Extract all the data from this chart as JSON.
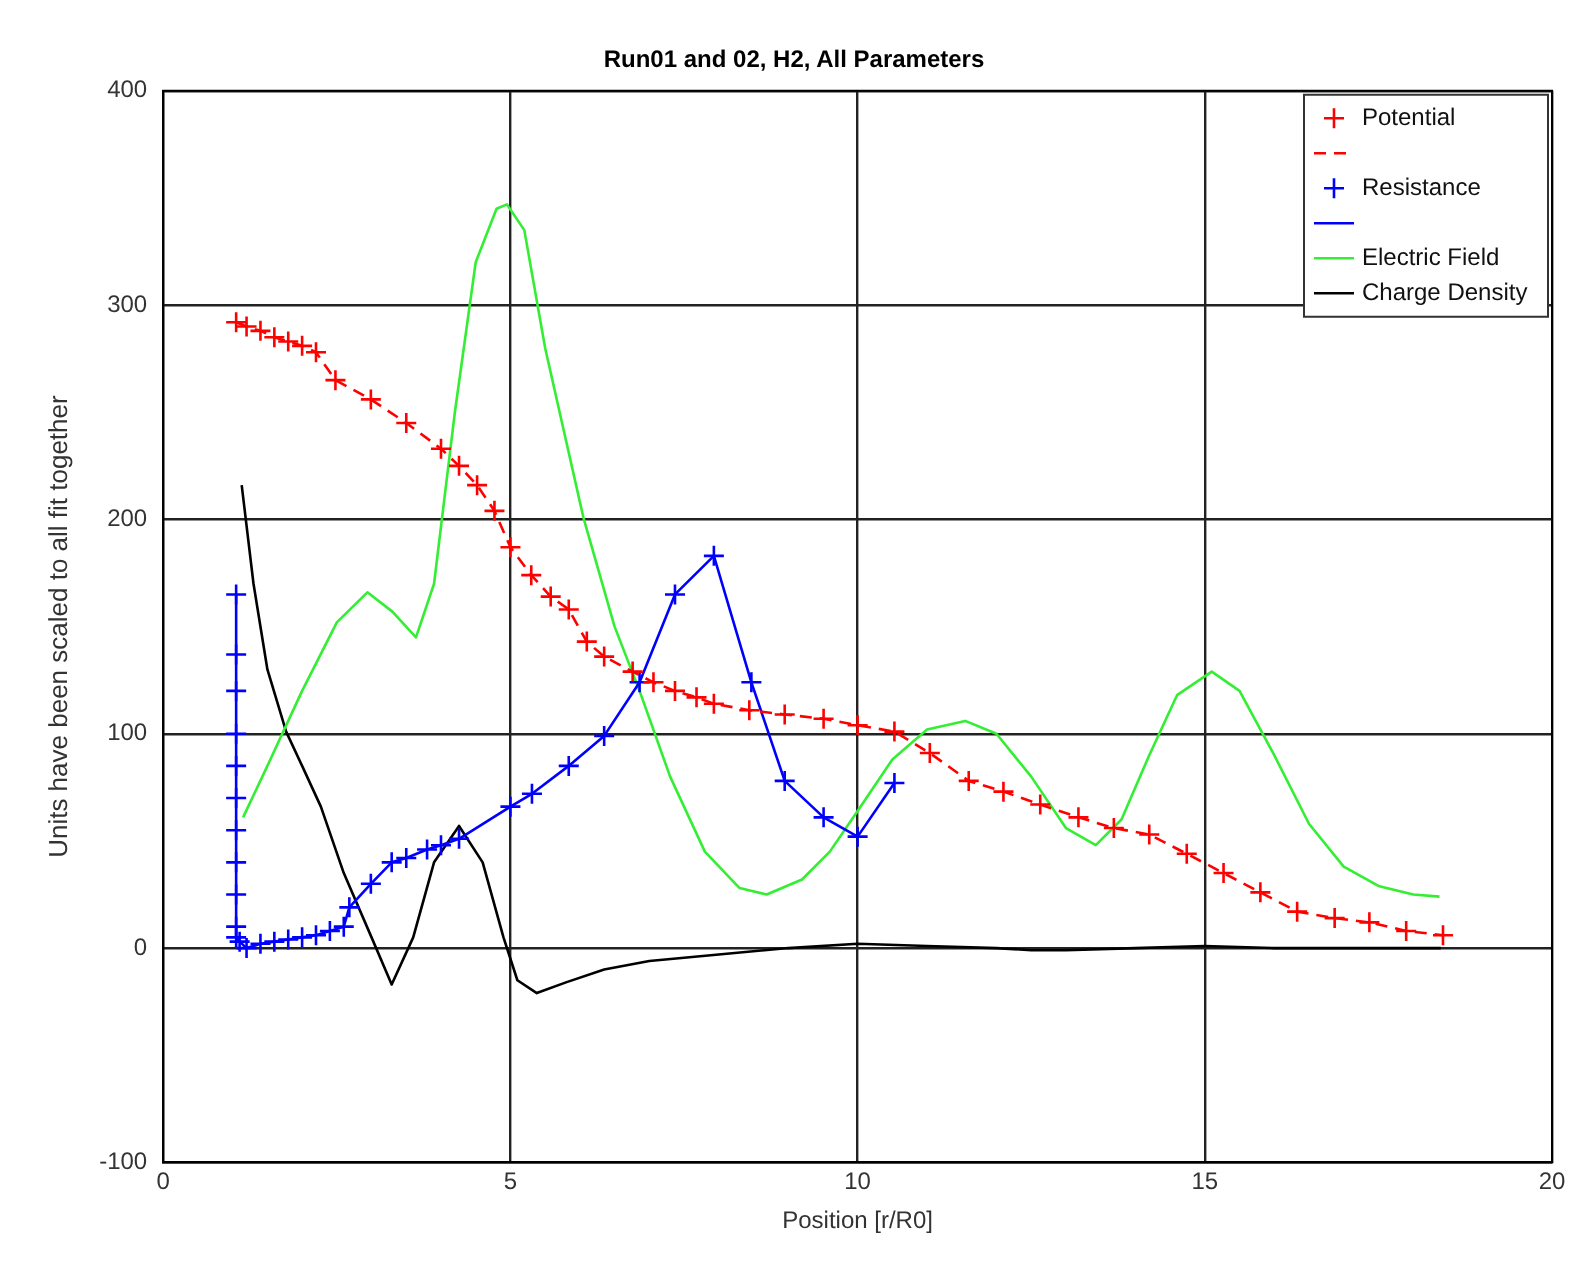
{
  "chart_data": {
    "type": "line",
    "title": "Run01 and 02, H2, All Parameters",
    "xlabel": "Position [r/R0]",
    "ylabel": "Units have been scaled to all fit together",
    "xlim": [
      0,
      20
    ],
    "xticks": [
      0,
      5,
      10,
      15,
      20
    ],
    "ylim": [
      -100,
      400
    ],
    "yticks": [
      -100,
      0,
      100,
      200,
      300,
      400
    ],
    "grid": true,
    "legend": "top right",
    "series": [
      {
        "name": "Potential",
        "color": "#ff0000",
        "marker": "cross",
        "line_style": "dashed",
        "x": [
          1.05,
          1.2,
          1.4,
          1.6,
          1.8,
          2.0,
          2.2,
          2.48,
          2.99,
          3.5,
          4.0,
          4.26,
          4.52,
          4.77,
          5.0,
          5.3,
          5.58,
          5.84,
          6.1,
          6.35,
          6.76,
          7.06,
          7.37,
          7.68,
          7.93,
          8.44,
          8.95,
          9.51,
          10.0,
          10.53,
          11.04,
          11.6,
          12.1,
          12.63,
          13.18,
          13.69,
          14.2,
          14.74,
          15.27,
          15.8,
          16.33,
          16.87,
          17.37,
          17.9,
          18.43
        ],
        "values": [
          292,
          290,
          288,
          285,
          283,
          281,
          278,
          265,
          256,
          245,
          233,
          225,
          216,
          204,
          187,
          174,
          164,
          158,
          143,
          136,
          129,
          124,
          120,
          117,
          114,
          111,
          109,
          107,
          104,
          101,
          91,
          78,
          73,
          67,
          61,
          56,
          53,
          44,
          35,
          26,
          17,
          14,
          12,
          8,
          6
        ]
      },
      {
        "name": "Resistance",
        "color": "#0000ff",
        "marker": "cross",
        "line_style": "solid",
        "x": [
          1.05,
          1.05,
          1.05,
          1.05,
          1.05,
          1.05,
          1.05,
          1.05,
          1.05,
          1.05,
          1.05,
          1.1,
          1.2,
          1.4,
          1.6,
          1.8,
          2.0,
          2.2,
          2.4,
          2.6,
          2.68,
          2.99,
          3.29,
          3.5,
          3.8,
          4.0,
          4.26,
          5.0,
          5.31,
          5.84,
          6.35,
          6.86,
          7.37,
          7.93,
          8.47,
          8.95,
          9.51,
          10.0,
          10.53
        ],
        "values": [
          165,
          137,
          120,
          100,
          85,
          70,
          55,
          40,
          25,
          10,
          5,
          3,
          0,
          2,
          3,
          4,
          5,
          6,
          8,
          10,
          19,
          30,
          40,
          42,
          46,
          48,
          51,
          66,
          72,
          85,
          99,
          124,
          165,
          183,
          124,
          78,
          61,
          52,
          77
        ]
      },
      {
        "name": "Electric Field",
        "color": "#33ee33",
        "marker": "none",
        "line_style": "solid",
        "x": [
          1.15,
          1.5,
          2.0,
          2.5,
          2.94,
          3.3,
          3.64,
          3.9,
          4.2,
          4.5,
          4.8,
          4.95,
          5.2,
          5.5,
          6.05,
          6.5,
          6.86,
          7.3,
          7.8,
          8.3,
          8.69,
          9.2,
          9.6,
          10.0,
          10.5,
          11.0,
          11.55,
          12.0,
          12.5,
          13.0,
          13.43,
          13.8,
          14.2,
          14.6,
          15.1,
          15.5,
          16.0,
          16.5,
          17.0,
          17.5,
          18.0,
          18.38
        ],
        "values": [
          61,
          85,
          120,
          152,
          166,
          157,
          145,
          170,
          250,
          320,
          345,
          347,
          335,
          280,
          201,
          150,
          120,
          80,
          45,
          28,
          25,
          32,
          45,
          64,
          88,
          102,
          106,
          100,
          80,
          56,
          48,
          60,
          90,
          118,
          129,
          120,
          90,
          58,
          38,
          29,
          25,
          24
        ]
      },
      {
        "name": "Charge Density",
        "color": "#000000",
        "marker": "none",
        "line_style": "solid",
        "x": [
          1.13,
          1.3,
          1.5,
          1.77,
          2.0,
          2.27,
          2.6,
          3.0,
          3.29,
          3.6,
          3.9,
          4.26,
          4.6,
          4.9,
          5.1,
          5.38,
          5.8,
          6.35,
          7,
          8,
          9,
          10,
          11,
          12,
          12.5,
          13,
          14,
          15,
          16,
          17,
          18.4
        ],
        "values": [
          216,
          170,
          130,
          101,
          85,
          66,
          35,
          5,
          -17,
          5,
          40,
          57,
          40,
          5,
          -15,
          -21,
          -16,
          -10,
          -6,
          -3,
          0,
          2,
          1,
          0,
          -1,
          -1,
          0,
          1,
          0,
          0,
          0
        ]
      }
    ]
  }
}
